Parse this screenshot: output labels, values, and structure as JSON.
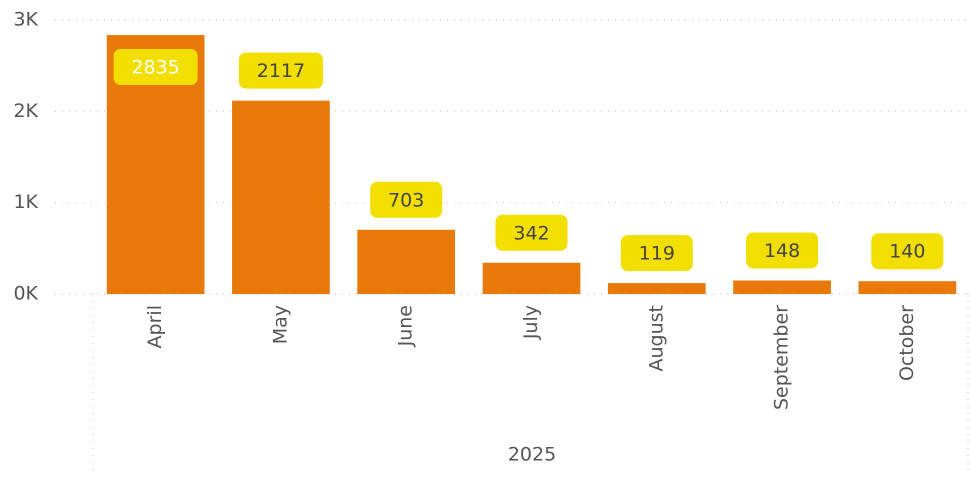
{
  "chart_data": {
    "type": "bar",
    "categories": [
      "April",
      "May",
      "June",
      "July",
      "August",
      "September",
      "October"
    ],
    "category_group": "2025",
    "values": [
      2835,
      2117,
      703,
      342,
      119,
      148,
      140
    ],
    "color": "#e8790b",
    "label_color": "#f2df00",
    "ylim": [
      0,
      3000
    ],
    "yticks": [
      {
        "value": 0,
        "label": "0K"
      },
      {
        "value": 1000,
        "label": "1K"
      },
      {
        "value": 2000,
        "label": "2K"
      },
      {
        "value": 3000,
        "label": "3K"
      }
    ],
    "grid": true
  }
}
